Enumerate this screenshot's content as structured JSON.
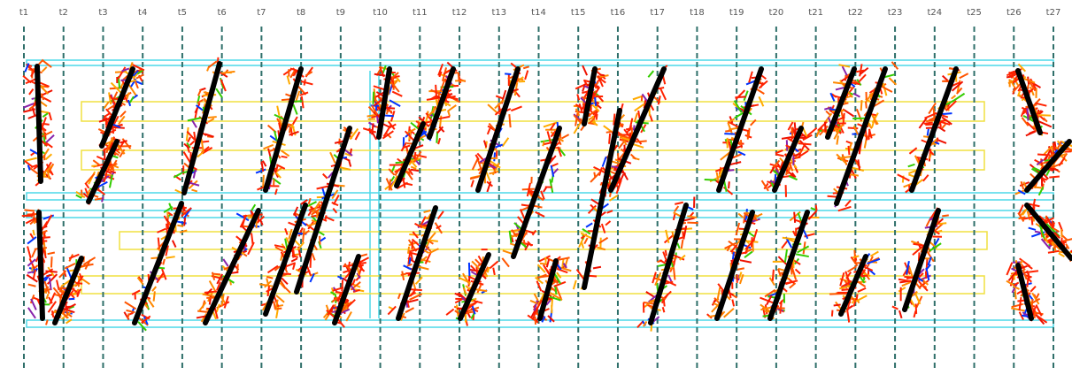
{
  "columns": {
    "labels": [
      "t1",
      "t2",
      "t3",
      "t4",
      "t5",
      "t6",
      "t7",
      "t8",
      "t9",
      "t10",
      "t11",
      "t12",
      "t13",
      "t14",
      "t15",
      "t16",
      "t17",
      "t18",
      "t19",
      "t20",
      "t21",
      "t22",
      "t23",
      "t24",
      "t25",
      "t26",
      "t27"
    ]
  }
}
